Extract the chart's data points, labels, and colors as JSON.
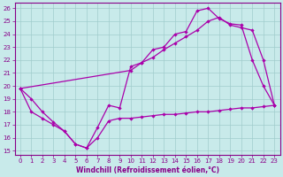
{
  "xlabel": "Windchill (Refroidissement éolien,°C)",
  "xlim": [
    -0.5,
    23.5
  ],
  "ylim": [
    14.7,
    26.4
  ],
  "xticks": [
    0,
    1,
    2,
    3,
    4,
    5,
    6,
    7,
    8,
    9,
    10,
    11,
    12,
    13,
    14,
    15,
    16,
    17,
    18,
    19,
    20,
    21,
    22,
    23
  ],
  "yticks": [
    15,
    16,
    17,
    18,
    19,
    20,
    21,
    22,
    23,
    24,
    25,
    26
  ],
  "bg_color": "#c8eaea",
  "grid_color": "#a0cccc",
  "line_color": "#aa00aa",
  "line1_x": [
    0,
    1,
    2,
    3,
    4,
    5,
    6,
    7,
    8,
    9,
    10,
    11,
    12,
    13,
    14,
    15,
    16,
    17,
    18,
    19,
    20,
    21,
    22,
    23
  ],
  "line1_y": [
    19.8,
    19.0,
    18.0,
    17.2,
    16.5,
    15.5,
    15.2,
    16.8,
    18.5,
    18.3,
    21.5,
    21.8,
    22.8,
    23.0,
    24.0,
    24.2,
    25.8,
    26.0,
    25.2,
    24.8,
    24.7,
    22.0,
    20.0,
    18.5
  ],
  "line2_x": [
    0,
    10,
    11,
    12,
    13,
    14,
    15,
    16,
    17,
    18,
    19,
    20,
    21,
    22,
    23
  ],
  "line2_y": [
    19.8,
    21.2,
    21.8,
    22.2,
    22.8,
    23.3,
    23.8,
    24.3,
    25.0,
    25.3,
    24.7,
    24.5,
    24.3,
    22.0,
    18.5
  ],
  "line3_x": [
    0,
    1,
    2,
    3,
    4,
    5,
    6,
    7,
    8,
    9,
    10,
    11,
    12,
    13,
    14,
    15,
    16,
    17,
    18,
    19,
    20,
    21,
    22,
    23
  ],
  "line3_y": [
    19.8,
    18.0,
    17.5,
    17.0,
    16.5,
    15.5,
    15.2,
    16.0,
    17.3,
    17.5,
    17.5,
    17.6,
    17.7,
    17.8,
    17.8,
    17.9,
    18.0,
    18.0,
    18.1,
    18.2,
    18.3,
    18.3,
    18.4,
    18.5
  ]
}
